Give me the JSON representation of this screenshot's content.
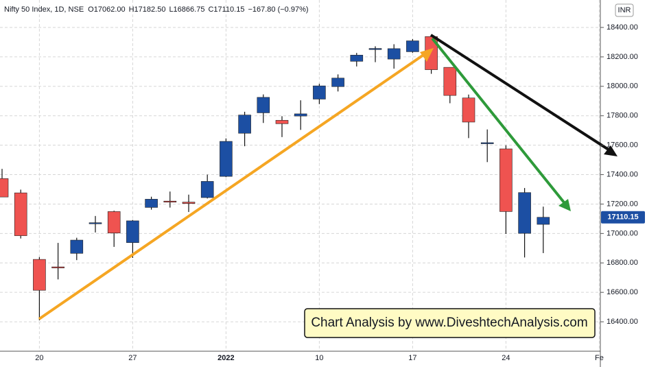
{
  "chart_data": {
    "type": "candlestick",
    "header": {
      "symbol": "Nifty 50 Index, 1D, NSE",
      "ohlc": [
        "O17062.00",
        "H17182.50",
        "L16866.75",
        "C17110.15"
      ],
      "change": "−167.80 (−0.97%)"
    },
    "currency": "INR",
    "annotation": "Chart Analysis by www.DiveshtechAnalysis.com",
    "last_price": 17110.15,
    "last_price_label": "17110.15",
    "up_color": "#1c4fa3",
    "down_color": "#ef5350",
    "categories": [
      null,
      null,
      "20",
      null,
      null,
      null,
      null,
      "27",
      null,
      null,
      null,
      null,
      "2022",
      null,
      null,
      null,
      null,
      "10",
      null,
      null,
      null,
      null,
      "17",
      null,
      null,
      null,
      null,
      "24",
      null,
      null,
      null,
      null,
      "Fe"
    ],
    "open": [
      17373,
      17276,
      16824,
      16773,
      16865,
      17067,
      17149,
      16938,
      17177,
      17220,
      17213,
      17244,
      17388,
      17681,
      17820,
      17769,
      17798,
      17913,
      17998,
      18170,
      18257,
      18185,
      18235,
      18338,
      18129,
      17921,
      17613,
      17575,
      17001,
      17062,
      null,
      null,
      null
    ],
    "high": [
      17439,
      17298,
      16840,
      16936,
      16971,
      17119,
      17155,
      17092,
      17250,
      17285,
      17264,
      17400,
      17646,
      17827,
      17945,
      17797,
      17905,
      18017,
      18081,
      18227,
      18272,
      18286,
      18321,
      18351,
      18129,
      17944,
      17707,
      17599,
      17309,
      17182.5,
      null,
      null,
      null
    ],
    "low": [
      17264,
      16966,
      16410,
      16688,
      16819,
      17007,
      16909,
      16834,
      17162,
      17176,
      17146,
      17238,
      17383,
      17593,
      17751,
      17655,
      17704,
      17879,
      17965,
      18135,
      18164,
      18120,
      18228,
      18085,
      17885,
      17648,
      17485,
      16997,
      16837,
      16866.75,
      null,
      null,
      null
    ],
    "close": [
      17248,
      16985,
      16614,
      16770,
      16955,
      17073,
      17003,
      17086,
      17233,
      17214,
      17204,
      17354,
      17626,
      17805,
      17925,
      17746,
      17813,
      18003,
      18056,
      18212,
      18257,
      18256,
      18309,
      18113,
      17938,
      17757,
      17617,
      17149,
      17278,
      17110.15,
      null,
      null,
      null
    ],
    "ylim": [
      16200,
      18586.5
    ],
    "yticks": [
      {
        "value": 16400,
        "label": "16400.00"
      },
      {
        "value": 16600,
        "label": "16600.00"
      },
      {
        "value": 16800,
        "label": "16800.00"
      },
      {
        "value": 17000,
        "label": "17000.00"
      },
      {
        "value": 17200,
        "label": "17200.00"
      },
      {
        "value": 17400,
        "label": "17400.00"
      },
      {
        "value": 17600,
        "label": "17600.00"
      },
      {
        "value": 17800,
        "label": "17800.00"
      },
      {
        "value": 18000,
        "label": "18000.00"
      },
      {
        "value": 18200,
        "label": "18200.00"
      },
      {
        "value": 18400,
        "label": "18400.00"
      }
    ],
    "grid": true
  }
}
